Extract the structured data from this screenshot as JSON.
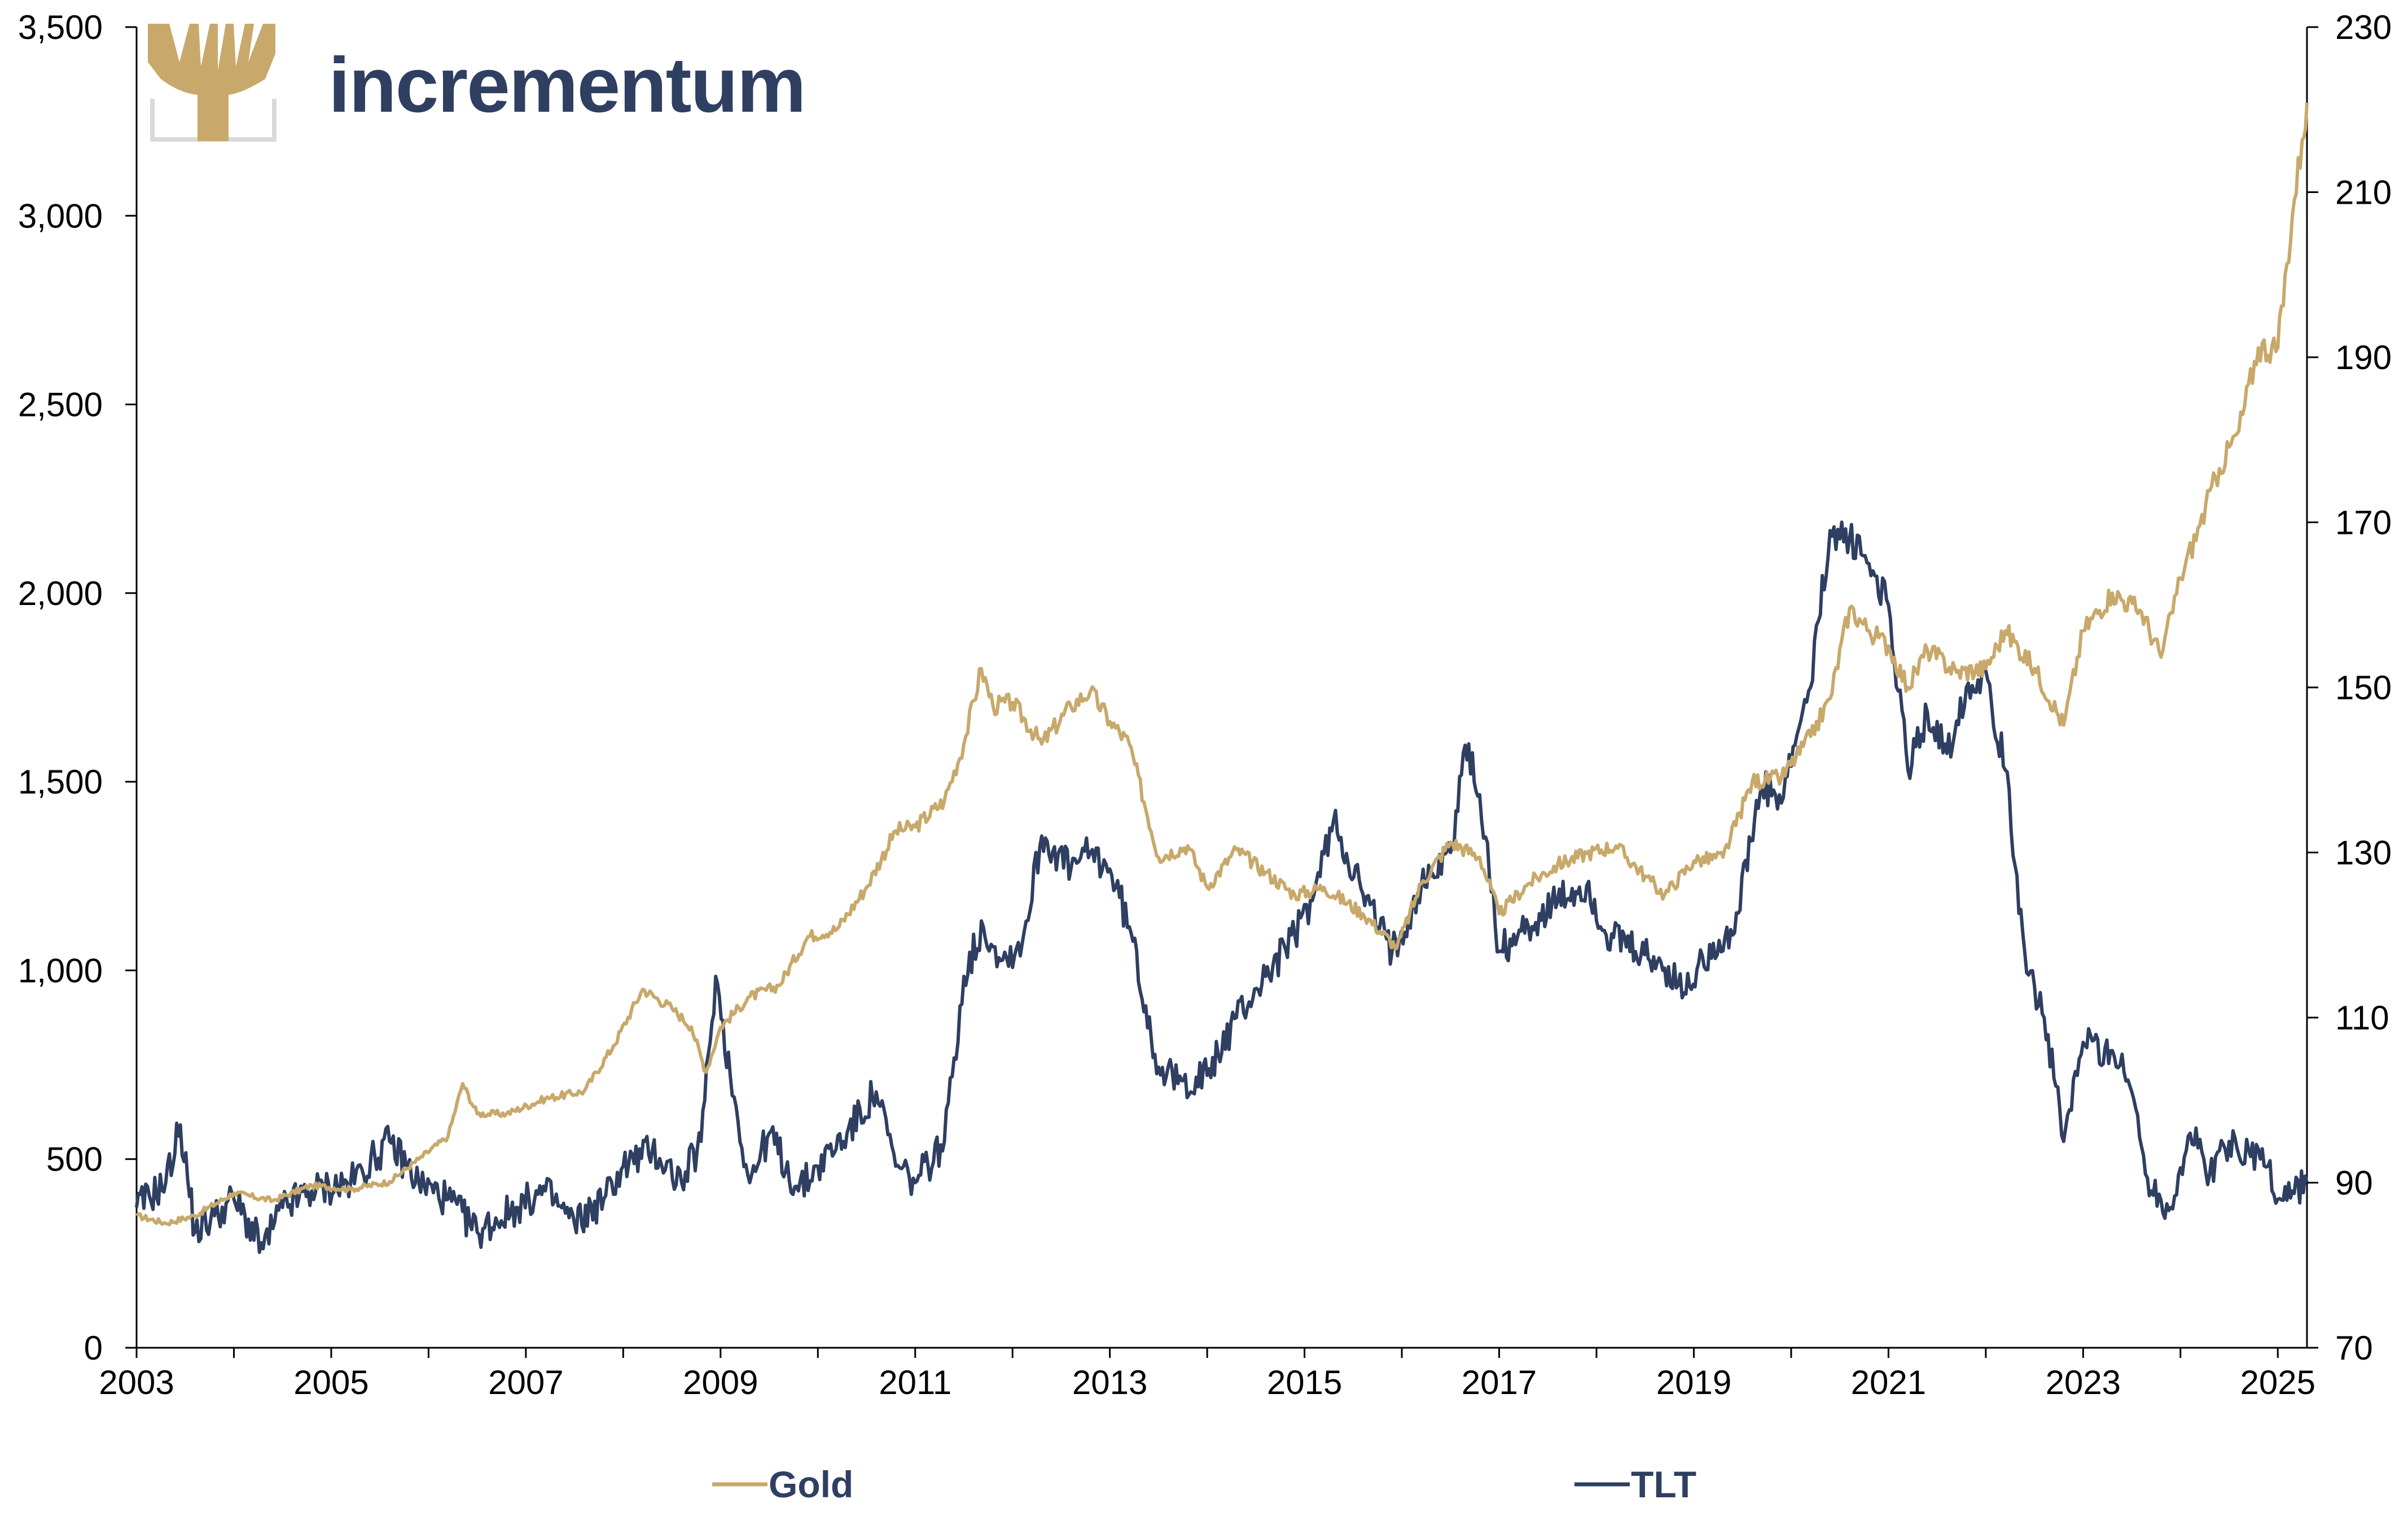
{
  "brand": {
    "name": "incrementum",
    "logo_icon": "tree-icon",
    "colors": {
      "gold": "#c8a96b",
      "navy": "#2e3f62",
      "frame": "#d9d9d9"
    }
  },
  "chart_data": {
    "type": "line",
    "title": "",
    "xlabel": "",
    "ylabel_left": "",
    "ylabel_right": "",
    "xlim": [
      2003.0,
      2025.3
    ],
    "x_ticks": [
      "2003",
      "2005",
      "2007",
      "2009",
      "2011",
      "2013",
      "2015",
      "2017",
      "2019",
      "2021",
      "2023",
      "2025"
    ],
    "y_left": {
      "lim": [
        0,
        3500
      ],
      "ticks": [
        "0",
        "500",
        "1,000",
        "1,500",
        "2,000",
        "2,500",
        "3,000",
        "3,500"
      ]
    },
    "y_right": {
      "lim": [
        70,
        230
      ],
      "ticks": [
        "70",
        "90",
        "110",
        "130",
        "150",
        "170",
        "190",
        "210",
        "230"
      ]
    },
    "grid": false,
    "legend": "bottom",
    "series": [
      {
        "name": "Gold",
        "axis": "left",
        "color": "#c8a96b",
        "x": [
          2003.0,
          2003.3,
          2003.6,
          2004.0,
          2004.4,
          2004.8,
          2005.2,
          2005.6,
          2005.9,
          2006.2,
          2006.35,
          2006.5,
          2006.8,
          2007.2,
          2007.6,
          2007.9,
          2008.2,
          2008.5,
          2008.7,
          2008.85,
          2009.0,
          2009.3,
          2009.6,
          2009.9,
          2010.2,
          2010.5,
          2010.8,
          2011.0,
          2011.3,
          2011.5,
          2011.68,
          2011.8,
          2012.0,
          2012.3,
          2012.6,
          2012.8,
          2013.0,
          2013.2,
          2013.5,
          2013.8,
          2014.0,
          2014.3,
          2014.6,
          2014.9,
          2015.2,
          2015.6,
          2015.95,
          2016.2,
          2016.5,
          2016.8,
          2017.0,
          2017.3,
          2017.6,
          2017.9,
          2018.2,
          2018.5,
          2018.7,
          2019.0,
          2019.3,
          2019.6,
          2019.9,
          2020.2,
          2020.4,
          2020.6,
          2020.8,
          2021.0,
          2021.2,
          2021.4,
          2021.7,
          2022.0,
          2022.2,
          2022.5,
          2022.8,
          2023.0,
          2023.3,
          2023.6,
          2023.8,
          2024.0,
          2024.2,
          2024.4,
          2024.6,
          2024.8,
          2025.0,
          2025.15,
          2025.25,
          2025.3
        ],
        "y": [
          350,
          330,
          350,
          410,
          390,
          430,
          420,
          440,
          500,
          560,
          700,
          620,
          620,
          660,
          680,
          800,
          950,
          900,
          850,
          730,
          850,
          930,
          960,
          1090,
          1110,
          1220,
          1370,
          1380,
          1450,
          1600,
          1800,
          1700,
          1710,
          1600,
          1700,
          1740,
          1660,
          1600,
          1300,
          1330,
          1220,
          1320,
          1260,
          1200,
          1220,
          1150,
          1060,
          1230,
          1340,
          1300,
          1150,
          1230,
          1280,
          1310,
          1330,
          1250,
          1200,
          1290,
          1300,
          1500,
          1510,
          1620,
          1720,
          1960,
          1900,
          1860,
          1750,
          1850,
          1790,
          1800,
          1900,
          1800,
          1650,
          1900,
          2000,
          1950,
          1830,
          2040,
          2180,
          2330,
          2430,
          2650,
          2650,
          3000,
          3200,
          3300
        ]
      },
      {
        "name": "TLT",
        "axis": "right",
        "color": "#2e3f62",
        "x": [
          2003.0,
          2003.3,
          2003.45,
          2003.6,
          2003.8,
          2004.0,
          2004.3,
          2004.5,
          2004.8,
          2005.2,
          2005.6,
          2005.9,
          2006.2,
          2006.5,
          2006.9,
          2007.2,
          2007.5,
          2007.8,
          2008.0,
          2008.3,
          2008.6,
          2008.8,
          2008.95,
          2009.1,
          2009.3,
          2009.5,
          2009.8,
          2010.0,
          2010.3,
          2010.6,
          2010.8,
          2011.0,
          2011.3,
          2011.5,
          2011.7,
          2011.9,
          2012.1,
          2012.3,
          2012.6,
          2012.8,
          2013.0,
          2013.2,
          2013.5,
          2013.7,
          2014.0,
          2014.3,
          2014.6,
          2014.9,
          2015.1,
          2015.3,
          2015.6,
          2015.9,
          2016.2,
          2016.5,
          2016.65,
          2016.8,
          2017.0,
          2017.3,
          2017.6,
          2017.9,
          2018.1,
          2018.4,
          2018.7,
          2018.9,
          2019.2,
          2019.4,
          2019.7,
          2019.9,
          2020.1,
          2020.2,
          2020.4,
          2020.6,
          2020.8,
          2021.0,
          2021.2,
          2021.4,
          2021.6,
          2021.8,
          2022.0,
          2022.2,
          2022.4,
          2022.6,
          2022.8,
          2023.0,
          2023.3,
          2023.5,
          2023.7,
          2023.9,
          2024.1,
          2024.3,
          2024.5,
          2024.7,
          2024.9,
          2025.0,
          2025.15,
          2025.3
        ],
        "y": [
          87,
          90,
          97,
          84,
          86,
          88,
          82,
          87,
          89,
          90,
          95,
          90,
          88,
          84,
          87,
          89,
          85,
          88,
          92,
          94,
          90,
          95,
          115,
          103,
          90,
          96,
          89,
          92,
          96,
          101,
          92,
          90,
          95,
          115,
          121,
          117,
          119,
          132,
          128,
          130,
          128,
          121,
          104,
          102,
          103,
          110,
          115,
          120,
          125,
          134,
          125,
          118,
          126,
          130,
          143,
          137,
          118,
          121,
          124,
          126,
          120,
          118,
          116,
          113,
          119,
          120,
          138,
          136,
          146,
          150,
          169,
          168,
          165,
          160,
          140,
          147,
          142,
          150,
          152,
          140,
          118,
          110,
          95,
          107,
          106,
          101,
          89,
          87,
          96,
          91,
          95,
          94,
          92,
          88,
          89,
          90
        ]
      }
    ]
  }
}
